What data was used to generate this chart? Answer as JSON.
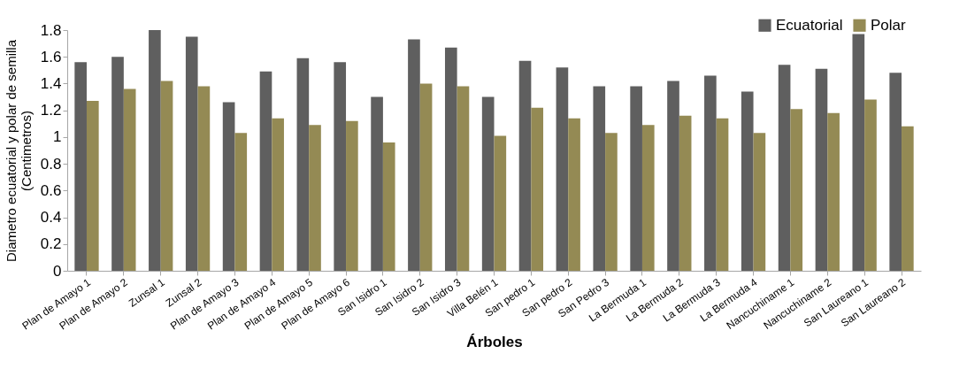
{
  "chart_data": {
    "type": "bar",
    "xlabel": "Árboles",
    "ylabel": "Diametro ecuatorial y polar de semilla (Centimetros)",
    "categories": [
      "Plan de Amayo 1",
      "Plan de Amayo 2",
      "Zunsal 1",
      "Zunsal 2",
      "Plan de Amayo 3",
      "Plan de Amayo 4",
      "Plan de Amayo 5",
      "Plan de Amayo 6",
      "San Isidro 1",
      "San Isidro 2",
      "San Isidro 3",
      "Villa Belén 1",
      "San pedro 1",
      "San pedro 2",
      "San Pedro 3",
      "La Bermuda 1",
      "La Bermuda 2",
      "La Bermuda 3",
      "La Bermuda 4",
      "Nancuchiname 1",
      "Nancuchiname 2",
      "San Laureano 1",
      "San Laureano 2"
    ],
    "series": [
      {
        "name": "Ecuatorial",
        "color": "#5f5f5f",
        "values": [
          1.56,
          1.6,
          1.8,
          1.75,
          1.26,
          1.49,
          1.59,
          1.56,
          1.3,
          1.73,
          1.67,
          1.3,
          1.57,
          1.52,
          1.38,
          1.38,
          1.42,
          1.46,
          1.34,
          1.54,
          1.51,
          1.77,
          1.48
        ]
      },
      {
        "name": "Polar",
        "color": "#948a54",
        "values": [
          1.27,
          1.36,
          1.42,
          1.38,
          1.03,
          1.14,
          1.09,
          1.12,
          0.96,
          1.4,
          1.38,
          1.01,
          1.22,
          1.14,
          1.03,
          1.09,
          1.16,
          1.14,
          1.03,
          1.21,
          1.18,
          1.28,
          1.08
        ]
      }
    ],
    "ylim": [
      0,
      1.8
    ],
    "yticks": [
      0,
      0.2,
      0.4,
      0.6,
      0.8,
      1,
      1.2,
      1.4,
      1.6,
      1.8
    ],
    "grid": false,
    "legend": "top right"
  }
}
